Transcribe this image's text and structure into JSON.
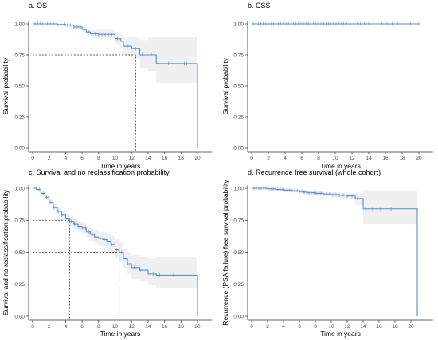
{
  "chart_data": [
    {
      "type": "line",
      "title": "a. OS",
      "xlabel": "Time in years",
      "ylabel": "Survival probability",
      "xlim": [
        0,
        20
      ],
      "ylim": [
        0,
        1
      ],
      "xticks": [
        "0",
        "2",
        "4",
        "6",
        "8",
        "10",
        "12",
        "14",
        "16",
        "18",
        "20"
      ],
      "yticks": [
        "0.00",
        "0.25",
        "0.50",
        "0.75",
        "1.00"
      ],
      "grid": false,
      "series": [
        {
          "x": [
            0,
            2,
            3,
            4,
            5,
            6,
            6.5,
            7,
            8,
            9,
            10,
            10.7,
            11,
            12,
            13,
            14,
            15,
            16,
            17,
            18,
            19.5,
            20
          ],
          "y": [
            1.0,
            1.0,
            0.995,
            0.99,
            0.975,
            0.955,
            0.935,
            0.92,
            0.915,
            0.915,
            0.88,
            0.86,
            0.82,
            0.8,
            0.75,
            0.75,
            0.68,
            0.68,
            0.68,
            0.68,
            0.68,
            0.0
          ],
          "lower": [
            1.0,
            1.0,
            0.99,
            0.98,
            0.96,
            0.94,
            0.91,
            0.89,
            0.88,
            0.88,
            0.83,
            0.8,
            0.75,
            0.72,
            0.64,
            0.62,
            0.52,
            0.52,
            0.52,
            0.52,
            0.52,
            0.52
          ],
          "upper": [
            1.0,
            1.0,
            1.0,
            1.0,
            0.99,
            0.975,
            0.96,
            0.95,
            0.95,
            0.95,
            0.93,
            0.92,
            0.89,
            0.89,
            0.87,
            0.89,
            0.89,
            0.89,
            0.89,
            0.89,
            0.89,
            0.89
          ],
          "censor": [
            0.3,
            0.6,
            0.9,
            1.2,
            1.5,
            1.8,
            2.2,
            2.6,
            3.0,
            3.4,
            3.8,
            4.2,
            4.6,
            5.0,
            5.4,
            5.8,
            6.2,
            6.8,
            7.2,
            7.6,
            8.0,
            8.4,
            8.8,
            9.2,
            9.6,
            10.3,
            11.5,
            12.5,
            13.3,
            14.4,
            16.5,
            18.4,
            18.7
          ]
        }
      ],
      "reference_lines": [
        {
          "y": 0.75,
          "x": 12.5
        }
      ]
    },
    {
      "type": "line",
      "title": "b. CSS",
      "xlabel": "Time in years",
      "ylabel": "Survival probability",
      "xlim": [
        0,
        20
      ],
      "ylim": [
        0,
        1
      ],
      "xticks": [
        "0",
        "2",
        "4",
        "6",
        "8",
        "10",
        "12",
        "14",
        "16",
        "18",
        "20"
      ],
      "yticks": [
        "0.00",
        "0.25",
        "0.50",
        "0.75",
        "1.00"
      ],
      "grid": false,
      "series": [
        {
          "x": [
            0,
            20
          ],
          "y": [
            1.0,
            1.0
          ],
          "censor": [
            0.2,
            0.5,
            0.8,
            1.1,
            1.4,
            1.7,
            2.0,
            2.3,
            2.6,
            2.9,
            3.2,
            3.5,
            3.8,
            4.1,
            4.4,
            4.7,
            5.0,
            5.3,
            5.6,
            5.9,
            6.2,
            6.5,
            6.8,
            7.1,
            7.4,
            7.7,
            8.0,
            8.3,
            8.6,
            8.9,
            9.2,
            9.5,
            9.8,
            10.1,
            10.4,
            10.7,
            11.0,
            11.4,
            11.8,
            12.2,
            12.6,
            13.0,
            13.5,
            14.0,
            14.5,
            15.0,
            15.6,
            16.2,
            16.8,
            17.5,
            18.3,
            19.0,
            20.0
          ]
        }
      ]
    },
    {
      "type": "line",
      "title": "c. Survival and no reclassification probability",
      "xlabel": "Time in years",
      "ylabel": "Survival and no reclassification probability",
      "xlim": [
        0,
        20
      ],
      "ylim": [
        0,
        1
      ],
      "xticks": [
        "0",
        "2",
        "4",
        "6",
        "8",
        "10",
        "12",
        "14",
        "16",
        "18",
        "20"
      ],
      "yticks": [
        "0.00",
        "0.25",
        "0.50",
        "0.75",
        "1.00"
      ],
      "grid": false,
      "series": [
        {
          "x": [
            0,
            0.5,
            1,
            1.5,
            2,
            2.5,
            3,
            3.5,
            4,
            4.5,
            5,
            5.5,
            6,
            6.5,
            7,
            7.5,
            8,
            8.5,
            9,
            9.5,
            10,
            10.5,
            11,
            11.5,
            12,
            13,
            14,
            15,
            16,
            17,
            18,
            19,
            20
          ],
          "y": [
            1.0,
            0.99,
            0.96,
            0.93,
            0.89,
            0.85,
            0.82,
            0.79,
            0.76,
            0.74,
            0.72,
            0.7,
            0.69,
            0.66,
            0.64,
            0.62,
            0.61,
            0.6,
            0.58,
            0.56,
            0.52,
            0.5,
            0.45,
            0.41,
            0.38,
            0.36,
            0.33,
            0.32,
            0.32,
            0.32,
            0.32,
            0.32,
            0.0
          ],
          "lower": [
            1.0,
            0.98,
            0.95,
            0.91,
            0.87,
            0.83,
            0.79,
            0.76,
            0.73,
            0.7,
            0.68,
            0.66,
            0.64,
            0.61,
            0.59,
            0.57,
            0.55,
            0.54,
            0.52,
            0.49,
            0.45,
            0.43,
            0.38,
            0.33,
            0.29,
            0.27,
            0.24,
            0.22,
            0.22,
            0.22,
            0.22,
            0.22,
            0.22
          ],
          "upper": [
            1.0,
            1.0,
            0.97,
            0.95,
            0.91,
            0.88,
            0.85,
            0.82,
            0.8,
            0.78,
            0.76,
            0.74,
            0.73,
            0.71,
            0.69,
            0.67,
            0.66,
            0.66,
            0.64,
            0.63,
            0.6,
            0.58,
            0.53,
            0.5,
            0.48,
            0.46,
            0.45,
            0.46,
            0.46,
            0.46,
            0.46,
            0.46,
            0.46
          ],
          "censor": [
            0.4,
            0.8,
            1.3,
            1.7,
            2.2,
            2.6,
            3.1,
            3.5,
            3.9,
            4.3,
            4.7,
            5.1,
            5.6,
            6.0,
            6.4,
            6.8,
            7.3,
            7.7,
            8.2,
            8.7,
            9.1,
            9.6,
            10.2,
            10.8,
            11.5,
            12.3,
            13.1,
            14.6,
            15.4,
            16.2,
            17.1
          ]
        }
      ],
      "reference_lines": [
        {
          "y": 0.75,
          "x": 4.5
        },
        {
          "y": 0.5,
          "x": 10.5
        }
      ]
    },
    {
      "type": "line",
      "title": "d. Recurrence free survival (whole cohort)",
      "xlabel": "Time in years",
      "ylabel": "Recurrence (PSA failure) free survival probability",
      "xlim": [
        0,
        21
      ],
      "ylim": [
        0,
        1
      ],
      "xticks": [
        "0",
        "2",
        "4",
        "6",
        "8",
        "10",
        "12",
        "14",
        "16",
        "18",
        "20"
      ],
      "yticks": [
        "0.00",
        "0.25",
        "0.50",
        "0.75",
        "1.00"
      ],
      "grid": false,
      "series": [
        {
          "x": [
            0,
            2,
            3,
            4,
            5,
            6,
            6.5,
            7,
            8,
            9,
            10,
            11,
            12,
            13,
            14,
            15,
            16,
            17,
            18,
            19,
            20,
            20.8
          ],
          "y": [
            1.0,
            0.995,
            0.99,
            0.985,
            0.98,
            0.975,
            0.97,
            0.965,
            0.96,
            0.955,
            0.95,
            0.945,
            0.94,
            0.92,
            0.84,
            0.84,
            0.84,
            0.84,
            0.84,
            0.84,
            0.84,
            0.0
          ],
          "lower": [
            1.0,
            0.99,
            0.985,
            0.975,
            0.97,
            0.96,
            0.955,
            0.95,
            0.945,
            0.94,
            0.93,
            0.92,
            0.91,
            0.87,
            0.72,
            0.72,
            0.72,
            0.72,
            0.72,
            0.72,
            0.72,
            0.72
          ],
          "upper": [
            1.0,
            1.0,
            1.0,
            0.995,
            0.99,
            0.99,
            0.985,
            0.98,
            0.975,
            0.97,
            0.97,
            0.965,
            0.965,
            0.965,
            0.985,
            0.985,
            0.985,
            0.985,
            0.985,
            0.985,
            0.985,
            0.985
          ],
          "censor": [
            0.3,
            0.6,
            0.9,
            1.2,
            1.5,
            1.8,
            2.1,
            2.4,
            2.7,
            3.0,
            3.3,
            3.6,
            3.9,
            4.2,
            4.5,
            4.8,
            5.1,
            5.4,
            5.7,
            6.0,
            6.3,
            6.6,
            6.9,
            7.2,
            7.5,
            7.8,
            8.1,
            8.4,
            8.7,
            9.0,
            9.4,
            9.8,
            10.2,
            10.6,
            11.0,
            11.5,
            12.0,
            12.6,
            13.3,
            14.3,
            15.2,
            16.2,
            17.5
          ]
        }
      ]
    }
  ]
}
